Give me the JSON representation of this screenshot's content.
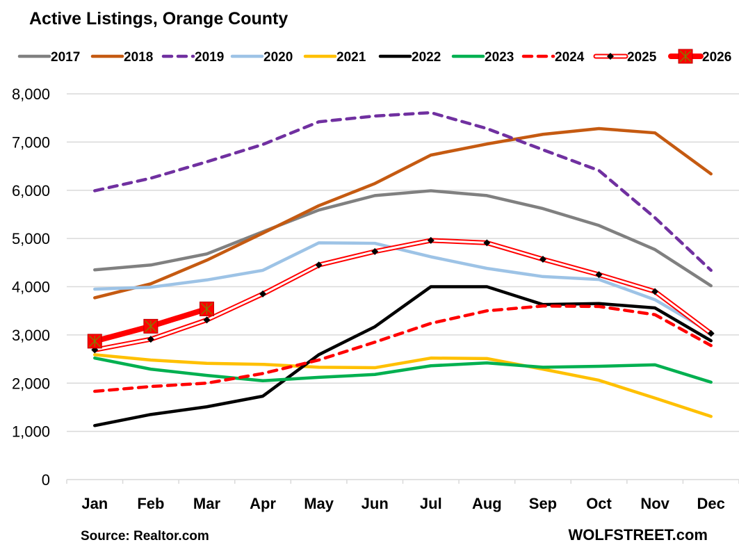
{
  "chart_data": {
    "type": "line",
    "title": "Active Listings, Orange County",
    "xlabel": "",
    "ylabel": "",
    "categories": [
      "Jan",
      "Feb",
      "Mar",
      "Apr",
      "May",
      "Jun",
      "Jul",
      "Aug",
      "Sep",
      "Oct",
      "Nov",
      "Dec"
    ],
    "ylim": [
      0,
      8000
    ],
    "yticks": [
      0,
      1000,
      2000,
      3000,
      4000,
      5000,
      6000,
      7000,
      8000
    ],
    "ytick_labels": [
      "0",
      "1,000",
      "2,000",
      "3,000",
      "4,000",
      "5,000",
      "6,000",
      "7,000",
      "8,000"
    ],
    "grid": true,
    "legend_position": "top",
    "series": [
      {
        "name": "2017",
        "color": "#808080",
        "style": "solid",
        "values": [
          4350,
          4450,
          4680,
          5140,
          5590,
          5890,
          5990,
          5890,
          5620,
          5270,
          4770,
          4020
        ]
      },
      {
        "name": "2018",
        "color": "#c55a11",
        "style": "solid",
        "values": [
          3770,
          4060,
          4550,
          5110,
          5680,
          6140,
          6730,
          6960,
          7160,
          7280,
          7190,
          6340
        ]
      },
      {
        "name": "2019",
        "color": "#7030a0",
        "style": "dashed",
        "values": [
          5990,
          6250,
          6590,
          6950,
          7420,
          7540,
          7610,
          7280,
          6840,
          6410,
          5430,
          4340
        ]
      },
      {
        "name": "2020",
        "color": "#9dc3e6",
        "style": "solid",
        "values": [
          3950,
          3990,
          4140,
          4340,
          4910,
          4900,
          4620,
          4380,
          4210,
          4150,
          3730,
          3050
        ]
      },
      {
        "name": "2021",
        "color": "#ffc000",
        "style": "solid",
        "values": [
          2590,
          2480,
          2410,
          2390,
          2330,
          2320,
          2520,
          2510,
          2290,
          2060,
          1690,
          1310
        ]
      },
      {
        "name": "2022",
        "color": "#000000",
        "style": "solid",
        "values": [
          1120,
          1350,
          1510,
          1730,
          2590,
          3170,
          4000,
          4000,
          3630,
          3650,
          3560,
          2880
        ]
      },
      {
        "name": "2023",
        "color": "#00b050",
        "style": "solid",
        "values": [
          2520,
          2290,
          2160,
          2050,
          2120,
          2180,
          2360,
          2420,
          2330,
          2350,
          2380,
          2020
        ]
      },
      {
        "name": "2024",
        "color": "#ff0000",
        "style": "dashed",
        "values": [
          1830,
          1930,
          2000,
          2200,
          2480,
          2850,
          3240,
          3500,
          3600,
          3590,
          3420,
          2780
        ]
      },
      {
        "name": "2025",
        "color": "#ff0000",
        "style": "double",
        "marker": "diamond",
        "values": [
          2690,
          2910,
          3310,
          3850,
          4450,
          4730,
          4960,
          4910,
          4570,
          4250,
          3900,
          3030
        ]
      },
      {
        "name": "2026",
        "color": "#ff0000",
        "style": "thick",
        "marker": "square-x",
        "values": [
          2870,
          3180,
          3540
        ]
      }
    ]
  },
  "footer": {
    "source": "Source: Realtor.com",
    "brand": "WOLFSTREET.com"
  }
}
